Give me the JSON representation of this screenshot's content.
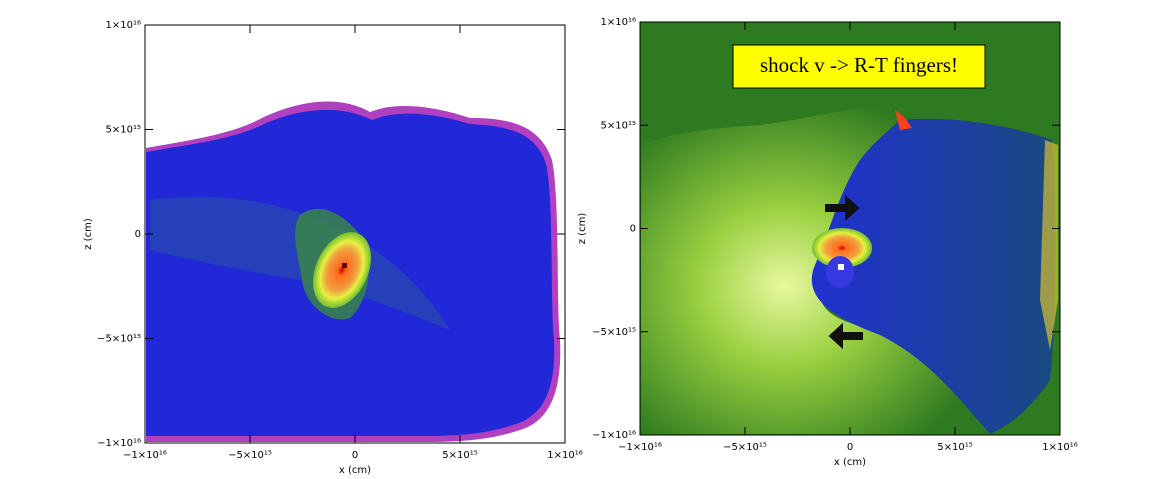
{
  "chart_data": [
    {
      "type": "heatmap",
      "xlabel": "x (cm)",
      "ylabel": "z (cm)",
      "xlim": [
        -1e+16,
        1e+16
      ],
      "ylim": [
        -1e+16,
        1e+16
      ],
      "xticks": [
        {
          "value": -1e+16,
          "label": "−1×10¹⁶"
        },
        {
          "value": -5000000000000000.0,
          "label": "−5×10¹⁵"
        },
        0,
        {
          "value": 5000000000000000.0,
          "label": "5×10¹⁵"
        },
        {
          "value": 1e+16,
          "label": "1×10¹⁶"
        }
      ],
      "yticks": [
        {
          "value": -1e+16,
          "label": "−1×10¹⁶"
        },
        {
          "value": -5000000000000000.0,
          "label": "−5×10¹⁵"
        },
        0,
        {
          "value": 5000000000000000.0,
          "label": "5×10¹⁵"
        },
        {
          "value": 1e+16,
          "label": "1×10¹⁶"
        }
      ]
    },
    {
      "type": "heatmap",
      "xlabel": "x (cm)",
      "ylabel": "z (cm)",
      "annotation": "shock v -> R-T fingers!",
      "xlim": [
        -1e+16,
        1e+16
      ],
      "ylim": [
        -1e+16,
        1e+16
      ],
      "xticks": [
        {
          "value": -1e+16,
          "label": "−1×10¹⁶"
        },
        {
          "value": -5000000000000000.0,
          "label": "−5×10¹⁵"
        },
        0,
        {
          "value": 5000000000000000.0,
          "label": "5×10¹⁵"
        },
        {
          "value": 1e+16,
          "label": "1×10¹⁶"
        }
      ],
      "yticks": [
        {
          "value": -1e+16,
          "label": "−1×10¹⁶"
        },
        {
          "value": -5000000000000000.0,
          "label": "−5×10¹⁵"
        },
        0,
        {
          "value": 5000000000000000.0,
          "label": "5×10¹⁵"
        },
        {
          "value": 1e+16,
          "label": "1×10¹⁶"
        }
      ]
    }
  ]
}
